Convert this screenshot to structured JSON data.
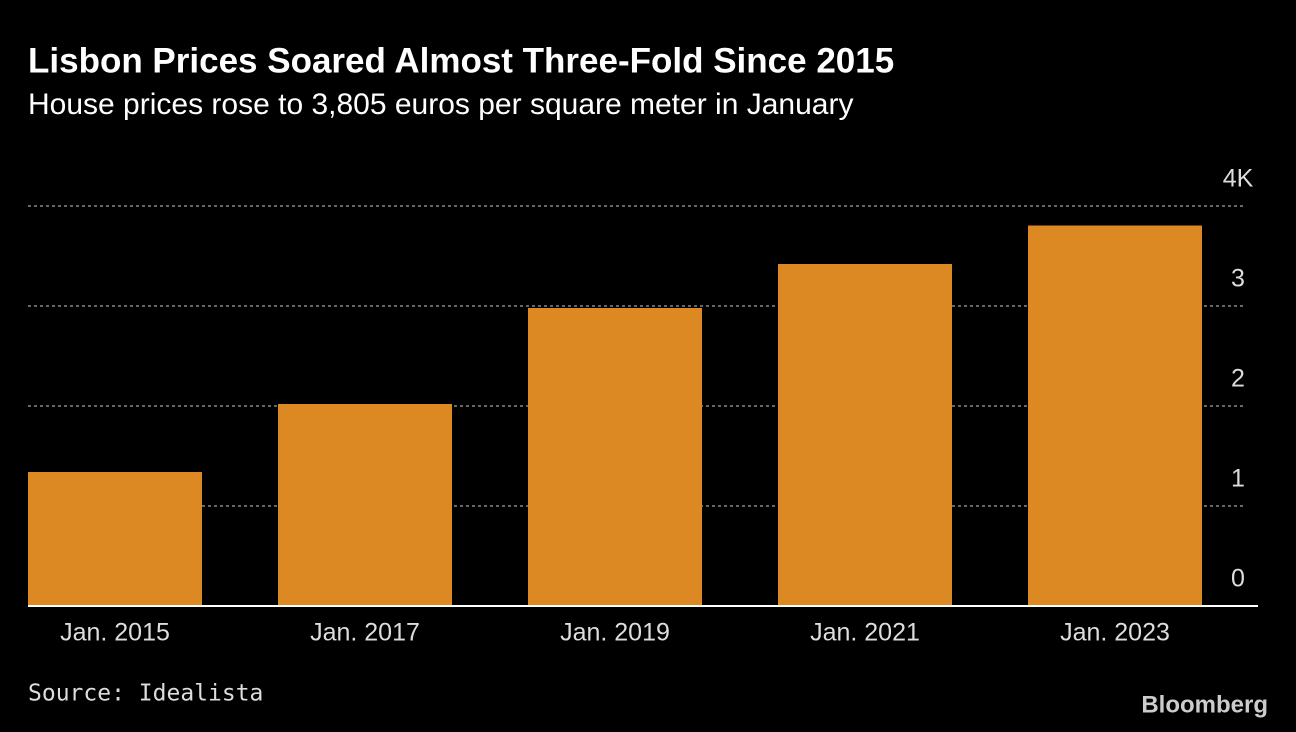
{
  "chart_data": {
    "type": "bar",
    "title": "Lisbon Prices Soared Almost Three-Fold Since 2015",
    "subtitle": "House prices rose to 3,805 euros per square meter in January",
    "categories": [
      "Jan. 2015",
      "Jan. 2017",
      "Jan. 2019",
      "Jan. 2021",
      "Jan. 2023"
    ],
    "values": [
      1.34,
      2.02,
      2.98,
      3.42,
      3.805
    ],
    "color": "#dc8924",
    "ylim": [
      0,
      4
    ],
    "yticks": [
      0,
      1,
      2,
      3,
      {
        "value": 4,
        "label": "4K"
      }
    ],
    "grid": true,
    "source": "Source: Idealista",
    "brand": "Bloomberg"
  }
}
